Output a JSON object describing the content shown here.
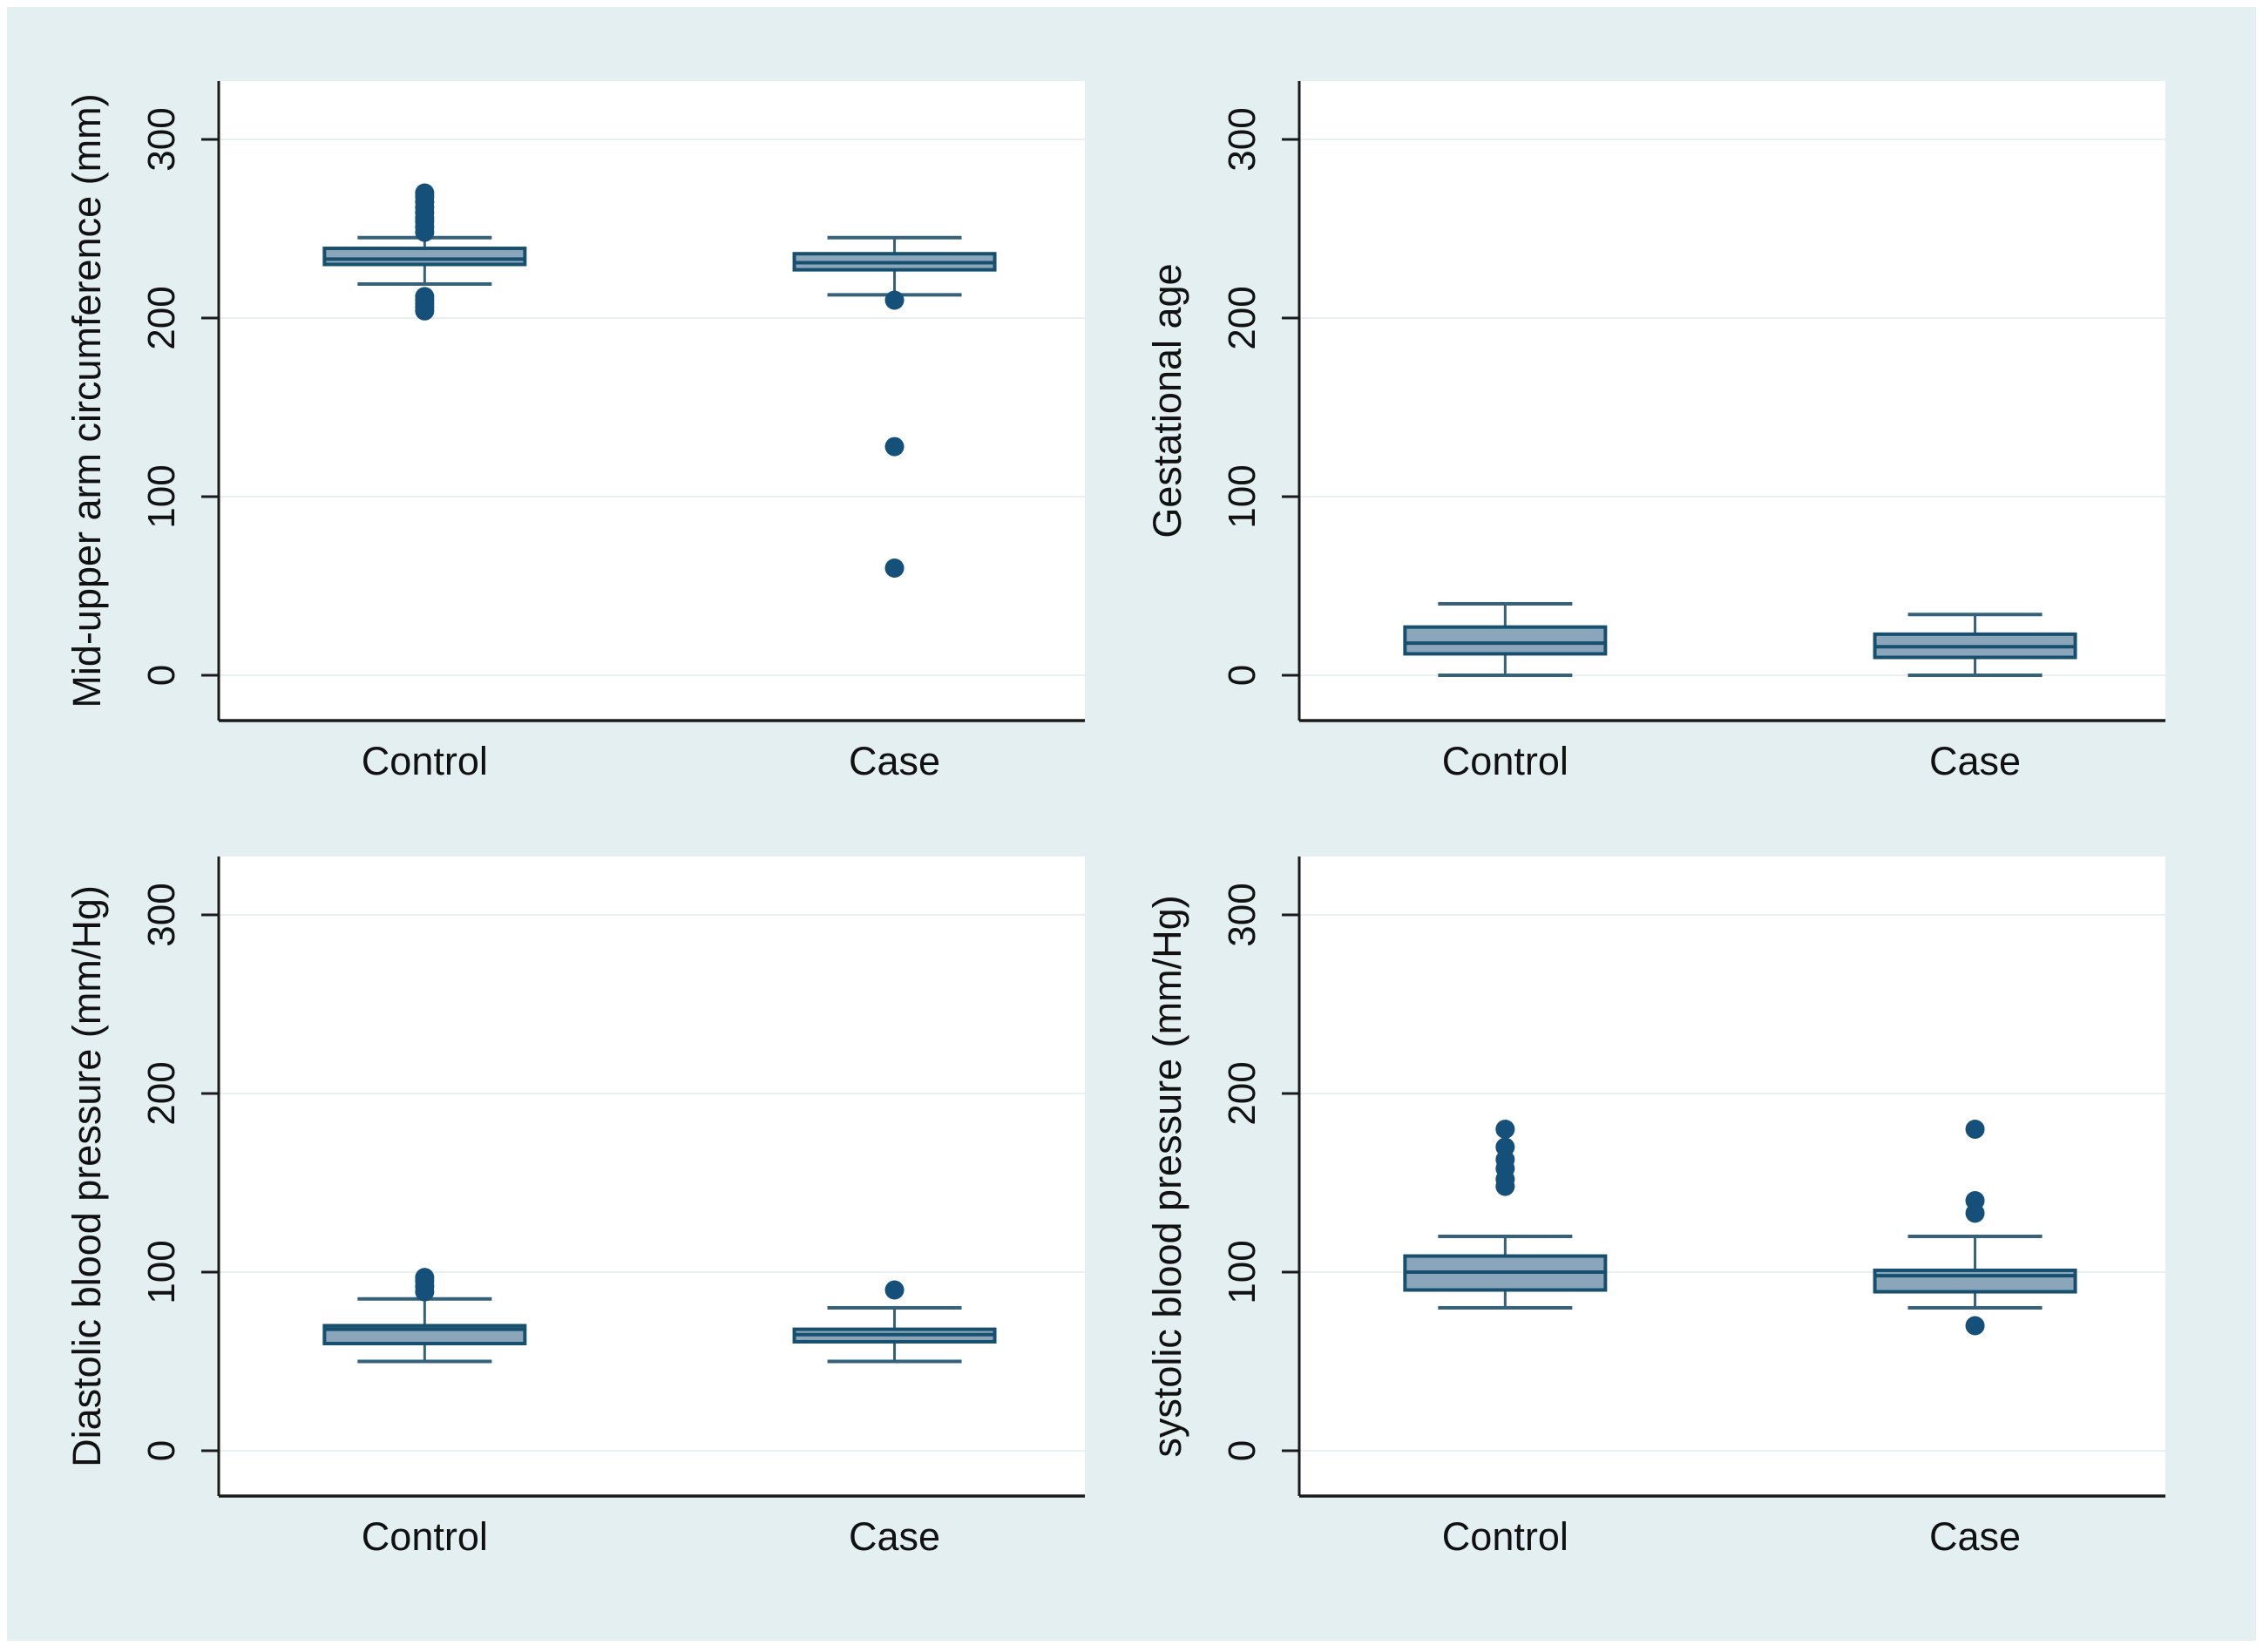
{
  "figure": {
    "description": "2x2 grid of Stata-style box plots comparing Control vs Case groups",
    "background_color": "#e4eff2",
    "plot_background": "#ffffff",
    "grid_color": "#e9f0f2",
    "box_fill": "#8ba6bb",
    "box_border": "#17506e",
    "whisker_color": "#35617a",
    "outlier_color": "#14507a",
    "axis_color": "#1a1a1a"
  },
  "chart_data": [
    {
      "type": "box",
      "title": "",
      "ylabel": "Mid-upper arm circumference (mm)",
      "xlabel": "",
      "categories": [
        "Control",
        "Case"
      ],
      "y_ticks": [
        "0",
        "100",
        "200",
        "300"
      ],
      "y_tick_values": [
        0,
        100,
        200,
        300
      ],
      "ylim": [
        -25,
        330
      ],
      "grid": true,
      "series": [
        {
          "category": "Control",
          "whisker_low": 219,
          "q1": 230,
          "median": 233,
          "q3": 239,
          "whisker_high": 245,
          "outliers_high": [
            248,
            251,
            254,
            256,
            259,
            262,
            265,
            268,
            270
          ],
          "outliers_low": [
            204,
            206,
            208,
            210,
            212
          ]
        },
        {
          "category": "Case",
          "whisker_low": 213,
          "q1": 227,
          "median": 231,
          "q3": 236,
          "whisker_high": 245,
          "outliers_high": [],
          "outliers_low": [
            210,
            128,
            60
          ]
        }
      ]
    },
    {
      "type": "box",
      "title": "",
      "ylabel": "Gestational age",
      "xlabel": "",
      "categories": [
        "Control",
        "Case"
      ],
      "y_ticks": [
        "0",
        "100",
        "200",
        "300"
      ],
      "y_tick_values": [
        0,
        100,
        200,
        300
      ],
      "ylim": [
        -25,
        330
      ],
      "grid": true,
      "series": [
        {
          "category": "Control",
          "whisker_low": 0,
          "q1": 12,
          "median": 18,
          "q3": 27,
          "whisker_high": 40,
          "outliers_high": [],
          "outliers_low": []
        },
        {
          "category": "Case",
          "whisker_low": 0,
          "q1": 10,
          "median": 16,
          "q3": 23,
          "whisker_high": 34,
          "outliers_high": [],
          "outliers_low": []
        }
      ]
    },
    {
      "type": "box",
      "title": "",
      "ylabel": "Diastolic blood pressure (mm/Hg)",
      "xlabel": "",
      "categories": [
        "Control",
        "Case"
      ],
      "y_ticks": [
        "0",
        "100",
        "200",
        "300"
      ],
      "y_tick_values": [
        0,
        100,
        200,
        300
      ],
      "ylim": [
        -25,
        330
      ],
      "grid": true,
      "series": [
        {
          "category": "Control",
          "whisker_low": 50,
          "q1": 60,
          "median": 68,
          "q3": 70,
          "whisker_high": 85,
          "outliers_high": [
            89,
            92,
            95,
            97
          ],
          "outliers_low": []
        },
        {
          "category": "Case",
          "whisker_low": 50,
          "q1": 61,
          "median": 65,
          "q3": 68,
          "whisker_high": 80,
          "outliers_high": [
            90
          ],
          "outliers_low": []
        }
      ]
    },
    {
      "type": "box",
      "title": "",
      "ylabel": "systolic blood pressure (mm/Hg)",
      "xlabel": "",
      "categories": [
        "Control",
        "Case"
      ],
      "y_ticks": [
        "0",
        "100",
        "200",
        "300"
      ],
      "y_tick_values": [
        0,
        100,
        200,
        300
      ],
      "ylim": [
        -25,
        330
      ],
      "grid": true,
      "series": [
        {
          "category": "Control",
          "whisker_low": 80,
          "q1": 90,
          "median": 100,
          "q3": 109,
          "whisker_high": 120,
          "outliers_high": [
            148,
            152,
            158,
            163,
            170,
            180
          ],
          "outliers_low": []
        },
        {
          "category": "Case",
          "whisker_low": 80,
          "q1": 89,
          "median": 98,
          "q3": 101,
          "whisker_high": 120,
          "outliers_high": [
            133,
            140,
            180
          ],
          "outliers_low": [
            70
          ]
        }
      ]
    }
  ]
}
